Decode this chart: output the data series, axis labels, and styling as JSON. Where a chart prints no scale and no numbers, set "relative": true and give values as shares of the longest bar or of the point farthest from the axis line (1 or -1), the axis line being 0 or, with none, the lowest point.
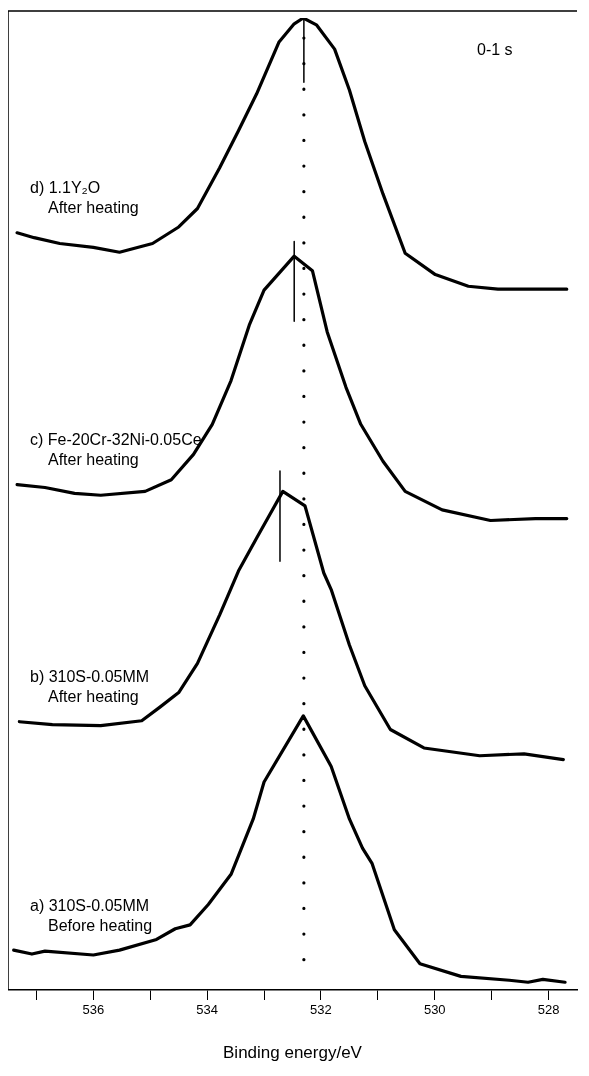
{
  "chart_data": {
    "type": "line",
    "relative": true,
    "xlabel": "Binding energy/eV",
    "annotations": [
      "0-1 s"
    ],
    "xlim": [
      537.5,
      527.5
    ],
    "xticks": [
      {
        "value": 537,
        "label": null
      },
      536,
      {
        "value": 535,
        "label": null
      },
      534,
      {
        "value": 533,
        "label": null
      },
      532,
      {
        "value": 531,
        "label": null
      },
      530,
      {
        "value": 529,
        "label": null
      },
      528
    ],
    "ref_lines": [
      {
        "axis": "x",
        "value": 532.3,
        "line_style": "dotted",
        "color": "#000000"
      }
    ],
    "series": [
      {
        "name": "d) 1.1Y₂O\nAfter heating",
        "color": "#000000",
        "x": [
          537.34,
          537.04,
          536.59,
          536.0,
          535.54,
          534.96,
          534.5,
          534.17,
          533.78,
          533.45,
          533.13,
          532.74,
          532.47,
          532.31,
          532.08,
          531.76,
          531.5,
          531.23,
          530.91,
          530.52,
          529.99,
          529.41,
          528.89,
          528.23,
          527.68
        ],
        "values": [
          0.779,
          0.774,
          0.768,
          0.764,
          0.759,
          0.768,
          0.785,
          0.804,
          0.846,
          0.884,
          0.922,
          0.975,
          0.994,
          1.0,
          0.993,
          0.968,
          0.926,
          0.873,
          0.819,
          0.758,
          0.736,
          0.724,
          0.721,
          0.721,
          0.721
        ]
      },
      {
        "name": "c) Fe-20Cr-32Ni-0.05Ce\nAfter heating",
        "color": "#000000",
        "x": [
          537.34,
          536.85,
          536.33,
          535.87,
          535.09,
          534.63,
          534.24,
          533.91,
          533.58,
          533.26,
          533.0,
          532.47,
          532.15,
          531.89,
          531.56,
          531.3,
          530.91,
          530.52,
          529.87,
          529.02,
          528.23,
          527.68
        ],
        "values": [
          0.52,
          0.517,
          0.511,
          0.509,
          0.513,
          0.525,
          0.551,
          0.582,
          0.627,
          0.684,
          0.72,
          0.755,
          0.74,
          0.677,
          0.62,
          0.582,
          0.544,
          0.513,
          0.494,
          0.483,
          0.485,
          0.485
        ]
      },
      {
        "name": "b) 310S-0.05MM\nAfter heating",
        "color": "#000000",
        "x": [
          537.3,
          536.72,
          535.87,
          535.15,
          534.83,
          534.5,
          534.17,
          533.78,
          533.45,
          533.13,
          532.67,
          532.28,
          531.95,
          531.82,
          531.5,
          531.23,
          530.78,
          530.19,
          529.21,
          528.43,
          527.74
        ],
        "values": [
          0.276,
          0.273,
          0.272,
          0.277,
          0.291,
          0.306,
          0.336,
          0.386,
          0.431,
          0.465,
          0.513,
          0.498,
          0.429,
          0.412,
          0.355,
          0.313,
          0.268,
          0.249,
          0.241,
          0.243,
          0.237
        ]
      },
      {
        "name": "a) 310S-0.05MM\nBefore heating",
        "color": "#000000",
        "x": [
          537.4,
          537.08,
          536.85,
          536.0,
          535.54,
          534.89,
          534.56,
          534.3,
          533.98,
          533.58,
          533.19,
          533.0,
          532.31,
          531.82,
          531.5,
          531.27,
          531.1,
          530.71,
          530.26,
          529.54,
          528.69,
          528.36,
          528.1,
          527.71
        ],
        "values": [
          0.041,
          0.037,
          0.04,
          0.036,
          0.041,
          0.052,
          0.063,
          0.067,
          0.088,
          0.119,
          0.176,
          0.214,
          0.282,
          0.23,
          0.176,
          0.146,
          0.13,
          0.062,
          0.027,
          0.014,
          0.01,
          0.008,
          0.011,
          0.008
        ]
      },
      {
        "color": "#000000",
        "x": [
          532.3,
          532.3
        ],
        "values": [
          1.0,
          0.934
        ]
      },
      {
        "color": "#000000",
        "x": [
          532.47,
          532.47
        ],
        "values": [
          0.77,
          0.688
        ]
      },
      {
        "color": "#000000",
        "x": [
          532.72,
          532.72
        ],
        "values": [
          0.534,
          0.441
        ]
      }
    ]
  }
}
